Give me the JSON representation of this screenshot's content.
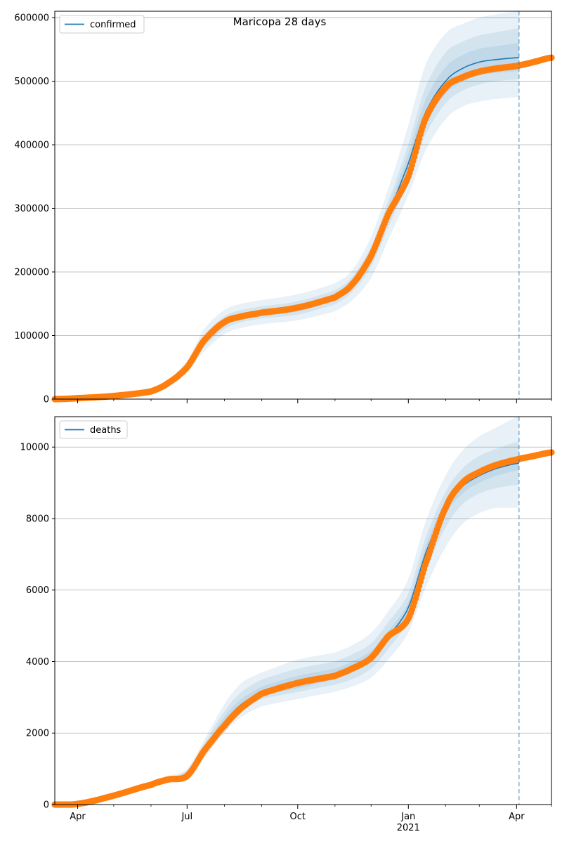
{
  "figure": {
    "title": "Maricopa 28 days"
  },
  "x_axis": {
    "domain": [
      "2020-03-13",
      "2021-04-30"
    ],
    "major_ticks": [
      {
        "date": "2020-04-01",
        "label": "Apr"
      },
      {
        "date": "2020-07-01",
        "label": "Jul"
      },
      {
        "date": "2020-10-01",
        "label": "Oct"
      },
      {
        "date": "2021-01-01",
        "label": "Jan"
      },
      {
        "date": "2021-04-01",
        "label": "Apr"
      }
    ],
    "year_label": {
      "date": "2021-01-01",
      "label": "2021"
    },
    "minor_ticks": [
      "2020-05-01",
      "2020-06-01",
      "2020-08-01",
      "2020-09-01",
      "2020-11-01",
      "2020-12-01",
      "2021-02-01",
      "2021-03-01",
      "2021-04-30"
    ]
  },
  "colors": {
    "model": "#1f77b4",
    "observed": "#ff7f0e",
    "band": "#1f77b4",
    "forecast_line": "#1f77b4",
    "grid": "#b0b0b0"
  },
  "chart_data": [
    {
      "type": "line",
      "legend": "confirmed",
      "legend_position": "upper-left",
      "grid": "horizontal",
      "ylim": [
        0,
        610000
      ],
      "yticks": [
        0,
        100000,
        200000,
        300000,
        400000,
        500000,
        600000
      ],
      "ytick_labels": [
        "0",
        "100000",
        "200000",
        "300000",
        "400000",
        "500000",
        "600000"
      ],
      "forecast_date": "2021-04-03",
      "model_series": {
        "name": "confirmed",
        "x": [
          "2020-03-13",
          "2020-04-01",
          "2020-05-01",
          "2020-06-01",
          "2020-06-15",
          "2020-07-01",
          "2020-07-15",
          "2020-08-01",
          "2020-08-15",
          "2020-09-01",
          "2020-10-01",
          "2020-11-01",
          "2020-11-15",
          "2020-12-01",
          "2020-12-15",
          "2021-01-01",
          "2021-01-15",
          "2021-02-01",
          "2021-02-15",
          "2021-03-01",
          "2021-03-15",
          "2021-04-03"
        ],
        "y": [
          0,
          2000,
          5000,
          13000,
          25000,
          50000,
          90000,
          120000,
          130000,
          136000,
          143000,
          160000,
          180000,
          225000,
          290000,
          370000,
          450000,
          500000,
          520000,
          530000,
          534000,
          537000
        ]
      },
      "bands": [
        {
          "upper": [
            0,
            2200,
            5500,
            15000,
            30000,
            60000,
            110000,
            140000,
            150000,
            156000,
            165000,
            182000,
            202000,
            255000,
            330000,
            430000,
            525000,
            575000,
            590000,
            600000,
            605000,
            610000
          ],
          "lower": [
            0,
            1800,
            4500,
            11000,
            20000,
            42000,
            75000,
            102000,
            112000,
            118000,
            124000,
            138000,
            155000,
            190000,
            250000,
            320000,
            390000,
            440000,
            460000,
            468000,
            472000,
            475000
          ]
        },
        {
          "upper": [
            0,
            2100,
            5200,
            14000,
            27000,
            55000,
            100000,
            130000,
            140000,
            146000,
            154000,
            171000,
            192000,
            240000,
            310000,
            400000,
            490000,
            545000,
            562000,
            572000,
            577000,
            583000
          ],
          "lower": [
            0,
            1900,
            4800,
            12000,
            22500,
            46000,
            82000,
            110000,
            121000,
            127000,
            133000,
            149000,
            168000,
            208000,
            270000,
            342000,
            415000,
            465000,
            485000,
            495000,
            500000,
            503000
          ]
        },
        {
          "upper": [
            0,
            2050,
            5100,
            13500,
            26000,
            52000,
            95000,
            125000,
            135000,
            141000,
            148000,
            165000,
            186000,
            232000,
            300000,
            385000,
            470000,
            522000,
            541000,
            551000,
            555000,
            560000
          ],
          "lower": [
            0,
            1950,
            4900,
            12500,
            24000,
            48000,
            86000,
            115000,
            125000,
            131000,
            138000,
            155000,
            174000,
            217000,
            280000,
            355000,
            430000,
            480000,
            499000,
            509000,
            513000,
            516000
          ]
        }
      ],
      "observed_series": {
        "name": "observed confirmed",
        "x": [
          "2020-03-13",
          "2020-04-01",
          "2020-05-01",
          "2020-06-01",
          "2020-06-15",
          "2020-07-01",
          "2020-07-15",
          "2020-08-01",
          "2020-08-15",
          "2020-09-01",
          "2020-10-01",
          "2020-11-01",
          "2020-11-15",
          "2020-12-01",
          "2020-12-15",
          "2021-01-01",
          "2021-01-15",
          "2021-02-01",
          "2021-02-15",
          "2021-03-01",
          "2021-03-15",
          "2021-04-01",
          "2021-04-15",
          "2021-04-30"
        ],
        "y": [
          0,
          1500,
          5000,
          12000,
          25000,
          50000,
          92000,
          121000,
          130000,
          136000,
          144000,
          160000,
          180000,
          225000,
          290000,
          350000,
          440000,
          490000,
          506000,
          515000,
          520000,
          524000,
          530000,
          537000
        ]
      }
    },
    {
      "type": "line",
      "legend": "deaths",
      "legend_position": "upper-left",
      "grid": "horizontal",
      "ylim": [
        0,
        10850
      ],
      "yticks": [
        0,
        2000,
        4000,
        6000,
        8000,
        10000
      ],
      "ytick_labels": [
        "0",
        "2000",
        "4000",
        "6000",
        "8000",
        "10000"
      ],
      "forecast_date": "2021-04-03",
      "model_series": {
        "name": "deaths",
        "x": [
          "2020-03-13",
          "2020-04-01",
          "2020-05-01",
          "2020-06-01",
          "2020-06-15",
          "2020-07-01",
          "2020-07-15",
          "2020-08-01",
          "2020-08-15",
          "2020-09-01",
          "2020-10-01",
          "2020-11-01",
          "2020-11-15",
          "2020-12-01",
          "2020-12-15",
          "2021-01-01",
          "2021-01-15",
          "2021-02-01",
          "2021-02-15",
          "2021-03-01",
          "2021-03-15",
          "2021-04-03"
        ],
        "y": [
          0,
          20,
          250,
          550,
          700,
          850,
          1500,
          2300,
          2800,
          3150,
          3400,
          3650,
          3850,
          4150,
          4700,
          5500,
          7000,
          8300,
          8900,
          9200,
          9400,
          9550
        ]
      },
      "bands": [
        {
          "upper": [
            0,
            30,
            300,
            650,
            800,
            1000,
            1800,
            2800,
            3400,
            3700,
            4050,
            4250,
            4450,
            4800,
            5400,
            6300,
            7900,
            9200,
            9900,
            10300,
            10550,
            10850
          ],
          "lower": [
            0,
            15,
            200,
            470,
            600,
            750,
            1300,
            2000,
            2450,
            2750,
            2950,
            3150,
            3300,
            3550,
            4050,
            4800,
            6050,
            7200,
            7850,
            8150,
            8300,
            8300
          ]
        },
        {
          "upper": [
            0,
            25,
            280,
            610,
            760,
            950,
            1700,
            2600,
            3150,
            3500,
            3800,
            4000,
            4200,
            4500,
            5100,
            5900,
            7450,
            8750,
            9400,
            9750,
            9950,
            10150
          ],
          "lower": [
            0,
            17,
            220,
            500,
            640,
            800,
            1400,
            2150,
            2650,
            2950,
            3150,
            3350,
            3500,
            3800,
            4350,
            5150,
            6500,
            7750,
            8400,
            8700,
            8850,
            8950
          ]
        },
        {
          "upper": [
            0,
            22,
            265,
            580,
            730,
            900,
            1600,
            2450,
            2950,
            3300,
            3600,
            3800,
            4000,
            4300,
            4850,
            5650,
            7200,
            8500,
            9100,
            9400,
            9600,
            9750
          ],
          "lower": [
            0,
            18,
            235,
            520,
            670,
            820,
            1450,
            2200,
            2700,
            3050,
            3250,
            3500,
            3700,
            4000,
            4550,
            5350,
            6800,
            8100,
            8700,
            9000,
            9200,
            9350
          ]
        }
      ],
      "observed_series": {
        "name": "observed deaths",
        "x": [
          "2020-03-13",
          "2020-04-01",
          "2020-05-01",
          "2020-06-01",
          "2020-06-15",
          "2020-07-01",
          "2020-07-15",
          "2020-08-01",
          "2020-08-15",
          "2020-09-01",
          "2020-10-01",
          "2020-11-01",
          "2020-11-15",
          "2020-12-01",
          "2020-12-15",
          "2021-01-01",
          "2021-01-15",
          "2021-02-01",
          "2021-02-15",
          "2021-03-01",
          "2021-03-15",
          "2021-04-01",
          "2021-04-15",
          "2021-04-30"
        ],
        "y": [
          0,
          20,
          250,
          550,
          700,
          800,
          1500,
          2200,
          2700,
          3100,
          3400,
          3600,
          3800,
          4100,
          4700,
          5200,
          6700,
          8300,
          9000,
          9300,
          9500,
          9650,
          9750,
          9850
        ]
      }
    }
  ]
}
